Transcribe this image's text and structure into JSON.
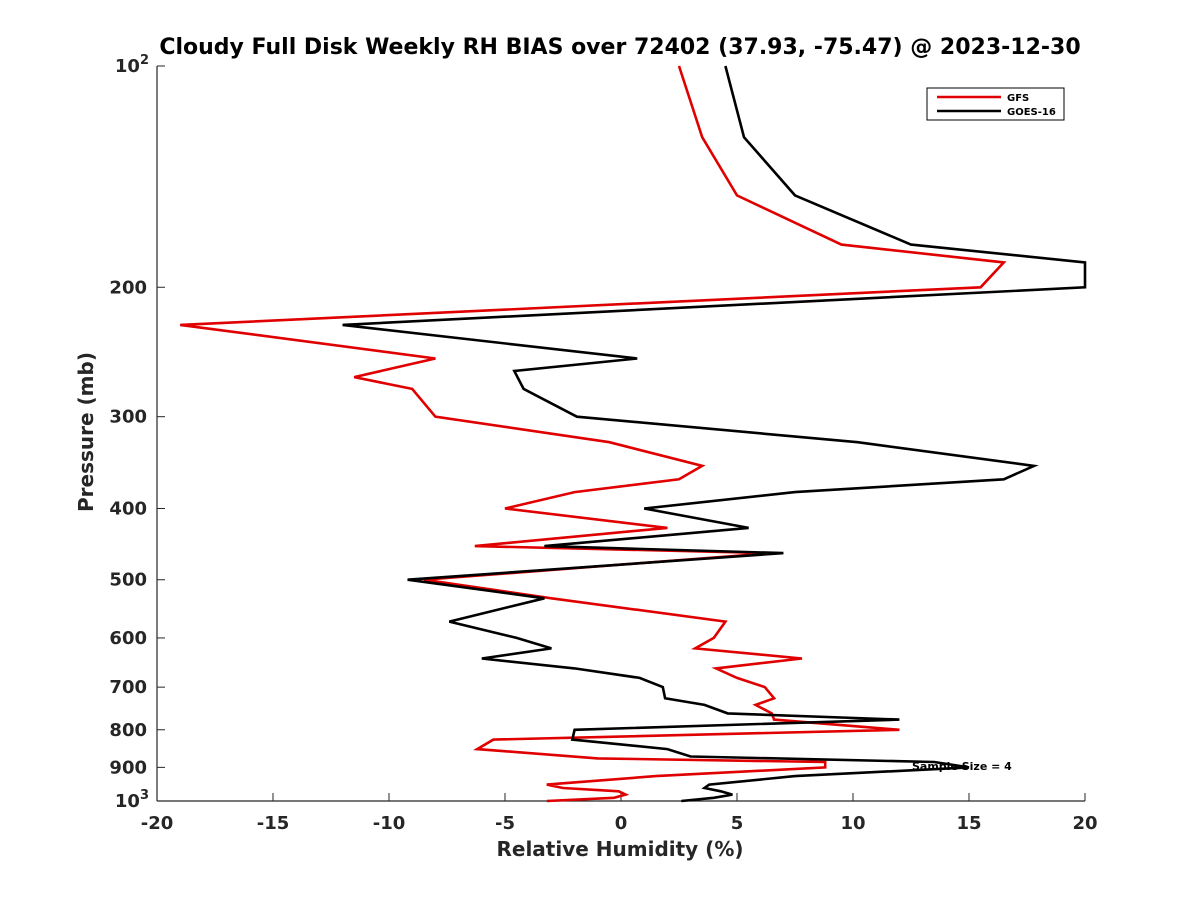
{
  "chart_data": {
    "type": "line",
    "title": "Cloudy Full Disk Weekly RH BIAS over 72402 (37.93, -75.47) @ 2023-12-30",
    "xlabel": "Relative Humidity (%)",
    "ylabel": "Pressure (mb)",
    "xlim": [
      -20,
      20
    ],
    "ylim": [
      100,
      1000
    ],
    "yscale": "log",
    "y_reversed": true,
    "grid": false,
    "legend_position": "top-right",
    "x_ticks": [
      "-20",
      "-15",
      "-10",
      "-5",
      "0",
      "5",
      "10",
      "15",
      "20"
    ],
    "y_ticks": [
      {
        "value": 100,
        "base": "10",
        "exp": "2",
        "label": ""
      },
      {
        "value": 200,
        "base": "",
        "exp": "",
        "label": "200"
      },
      {
        "value": 300,
        "base": "",
        "exp": "",
        "label": "300"
      },
      {
        "value": 400,
        "base": "",
        "exp": "",
        "label": "400"
      },
      {
        "value": 500,
        "base": "",
        "exp": "",
        "label": "500"
      },
      {
        "value": 600,
        "base": "",
        "exp": "",
        "label": "600"
      },
      {
        "value": 700,
        "base": "",
        "exp": "",
        "label": "700"
      },
      {
        "value": 800,
        "base": "",
        "exp": "",
        "label": "800"
      },
      {
        "value": 900,
        "base": "",
        "exp": "",
        "label": "900"
      },
      {
        "value": 1000,
        "base": "10",
        "exp": "3",
        "label": ""
      }
    ],
    "annotation": "Sample Size = 4",
    "series": [
      {
        "name": "GFS",
        "color": "#e00000",
        "points": [
          [
            2.5,
            100
          ],
          [
            3.5,
            125
          ],
          [
            5.0,
            150
          ],
          [
            9.5,
            175
          ],
          [
            16.5,
            185
          ],
          [
            15.5,
            200
          ],
          [
            -19.0,
            225
          ],
          [
            -8.0,
            250
          ],
          [
            -11.5,
            265
          ],
          [
            -9.0,
            275
          ],
          [
            -8.0,
            300
          ],
          [
            -0.5,
            325
          ],
          [
            3.5,
            350
          ],
          [
            2.5,
            365
          ],
          [
            -2.0,
            380
          ],
          [
            -5.0,
            400
          ],
          [
            2.0,
            425
          ],
          [
            -6.3,
            450
          ],
          [
            6.5,
            460
          ],
          [
            -8.5,
            500
          ],
          [
            -3.0,
            530
          ],
          [
            4.5,
            570
          ],
          [
            4.0,
            600
          ],
          [
            3.2,
            620
          ],
          [
            7.8,
            640
          ],
          [
            4.1,
            660
          ],
          [
            5.0,
            680
          ],
          [
            6.2,
            700
          ],
          [
            6.6,
            725
          ],
          [
            5.8,
            740
          ],
          [
            6.5,
            760
          ],
          [
            6.6,
            775
          ],
          [
            12.0,
            800
          ],
          [
            -5.5,
            825
          ],
          [
            -6.2,
            850
          ],
          [
            -1.0,
            875
          ],
          [
            8.8,
            885
          ],
          [
            8.8,
            900
          ],
          [
            1.5,
            925
          ],
          [
            -3.2,
            950
          ],
          [
            -2.5,
            960
          ],
          [
            -0.1,
            970
          ],
          [
            0.2,
            980
          ],
          [
            -0.3,
            990
          ],
          [
            -3.2,
            1000
          ]
        ]
      },
      {
        "name": "GOES-16",
        "color": "#000000",
        "points": [
          [
            4.5,
            100
          ],
          [
            5.3,
            125
          ],
          [
            7.5,
            150
          ],
          [
            12.5,
            175
          ],
          [
            20.0,
            185
          ],
          [
            20.0,
            200
          ],
          [
            -12.0,
            225
          ],
          [
            0.7,
            250
          ],
          [
            -4.6,
            260
          ],
          [
            -4.2,
            275
          ],
          [
            -1.9,
            300
          ],
          [
            10.2,
            325
          ],
          [
            17.8,
            350
          ],
          [
            16.5,
            365
          ],
          [
            7.5,
            380
          ],
          [
            1.0,
            400
          ],
          [
            5.5,
            425
          ],
          [
            -3.3,
            450
          ],
          [
            7.0,
            460
          ],
          [
            -9.2,
            500
          ],
          [
            -3.3,
            530
          ],
          [
            -7.4,
            570
          ],
          [
            -4.5,
            600
          ],
          [
            -3.0,
            620
          ],
          [
            -6.0,
            640
          ],
          [
            -2.0,
            660
          ],
          [
            0.8,
            680
          ],
          [
            1.8,
            700
          ],
          [
            1.9,
            725
          ],
          [
            3.6,
            740
          ],
          [
            4.6,
            760
          ],
          [
            12.0,
            775
          ],
          [
            -2.0,
            800
          ],
          [
            -2.1,
            825
          ],
          [
            2.0,
            850
          ],
          [
            3.0,
            870
          ],
          [
            13.5,
            885
          ],
          [
            15.0,
            900
          ],
          [
            7.5,
            925
          ],
          [
            3.8,
            950
          ],
          [
            3.6,
            960
          ],
          [
            4.3,
            970
          ],
          [
            4.8,
            980
          ],
          [
            4.0,
            990
          ],
          [
            2.6,
            1000
          ]
        ]
      }
    ]
  }
}
